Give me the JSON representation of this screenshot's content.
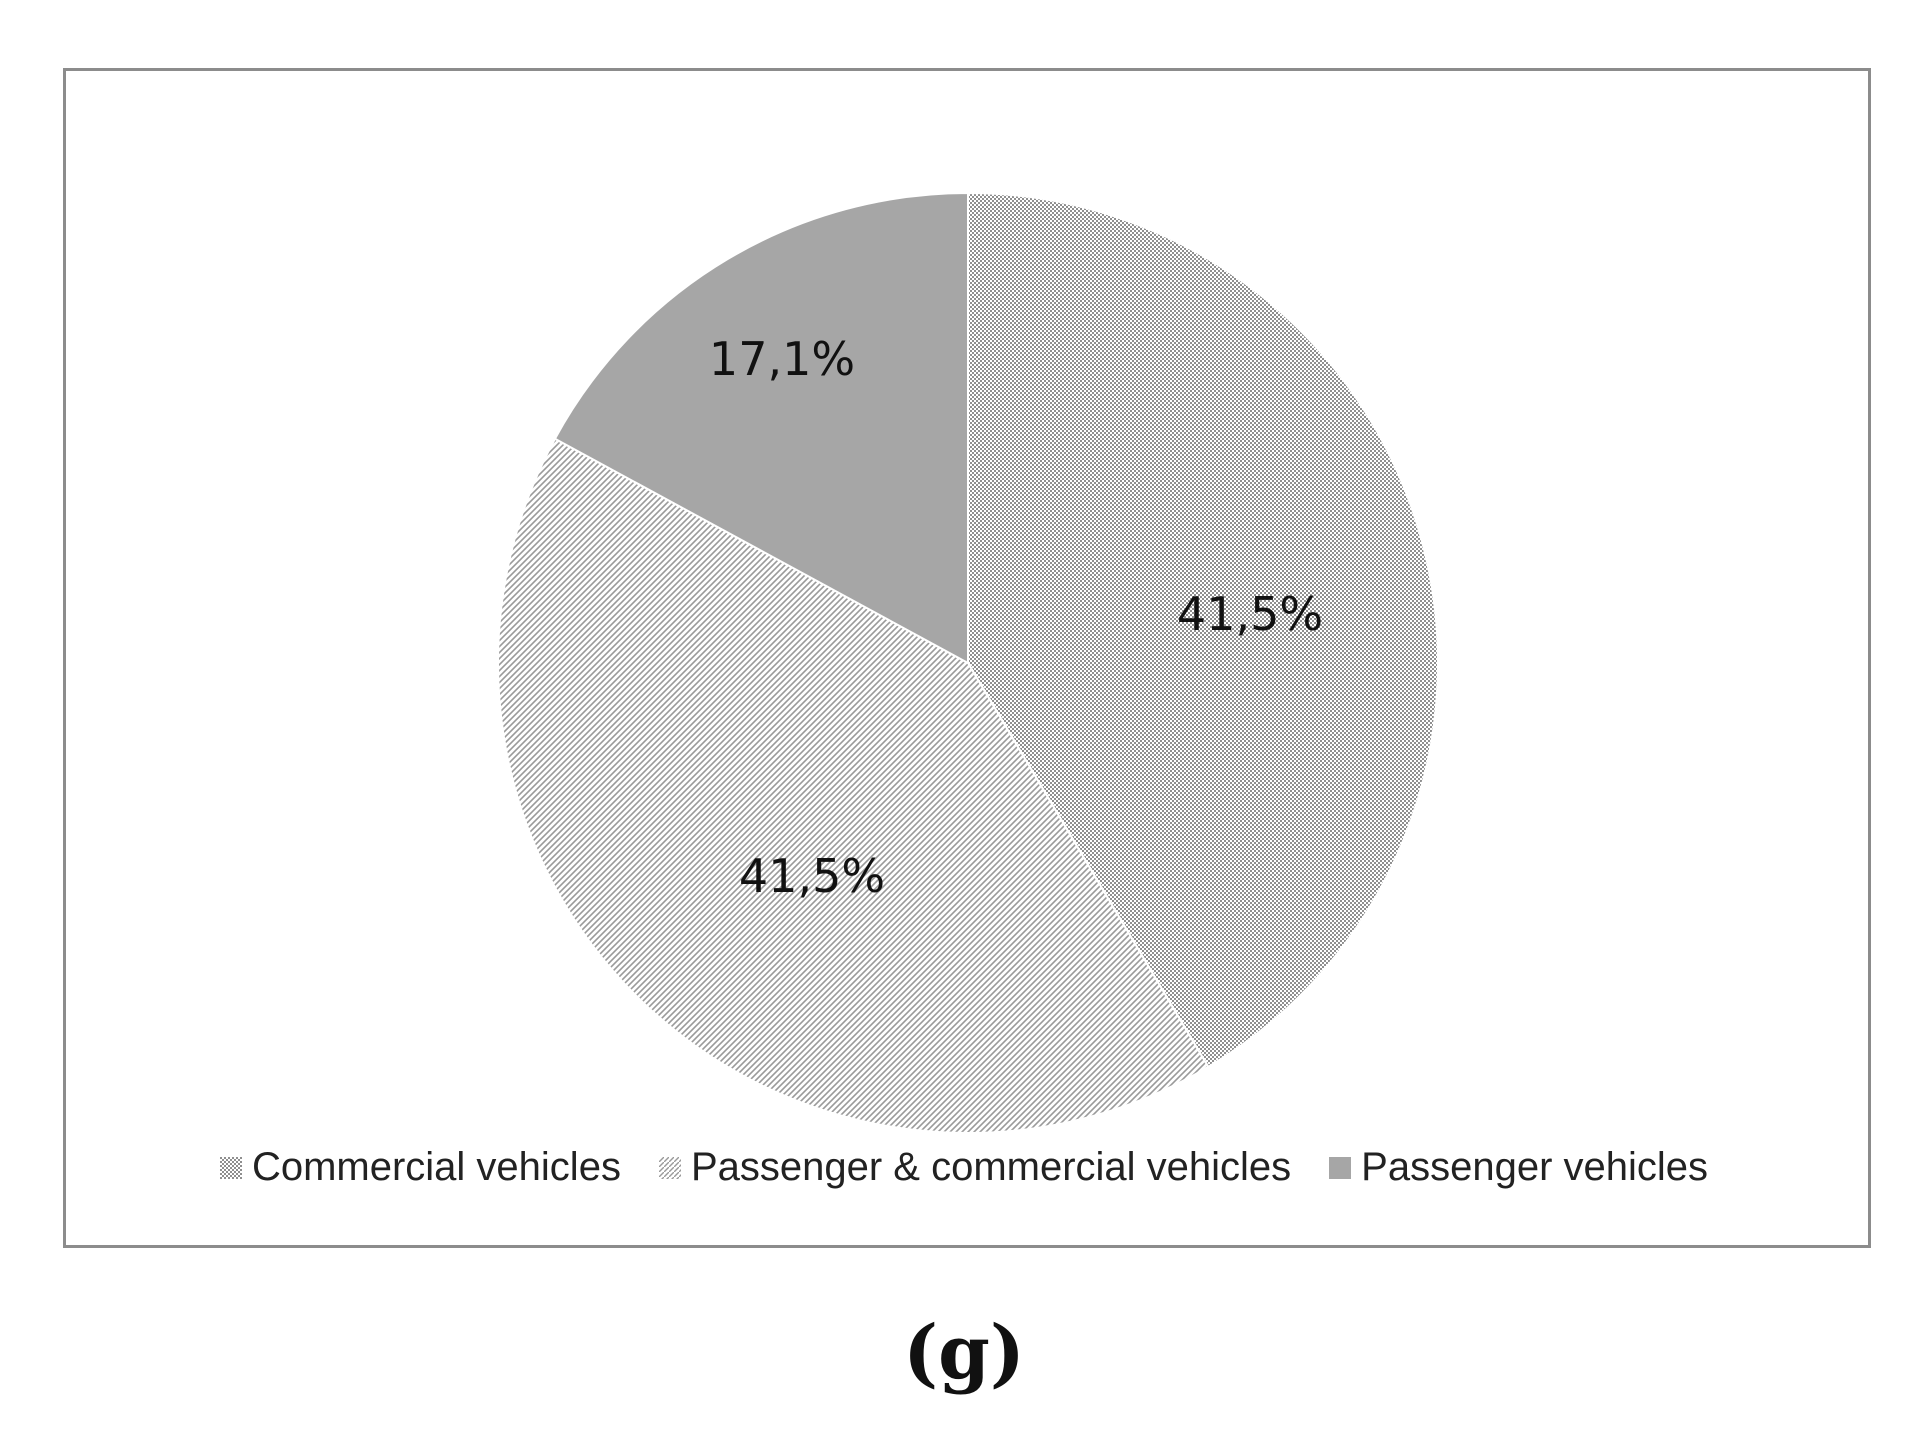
{
  "chart_data": {
    "type": "pie",
    "categories": [
      "Commercial vehicles",
      "Passenger & commercial vehicles",
      "Passenger vehicles"
    ],
    "values": [
      41.5,
      41.5,
      17.1
    ],
    "data_labels": [
      "41,5%",
      "41,5%",
      "17,1%"
    ],
    "legend_placement": "bottom",
    "start_angle": "12 o'clock",
    "direction": "clockwise",
    "patterns": [
      "dense-dots",
      "diagonal-hatch",
      "solid"
    ],
    "colors": {
      "commercial": "#a9a9a9",
      "passenger_commercial": "#9a9a9a",
      "passenger": "#a6a6a6",
      "border": "#8c8c8c"
    }
  },
  "subfigure_label": "(g)"
}
